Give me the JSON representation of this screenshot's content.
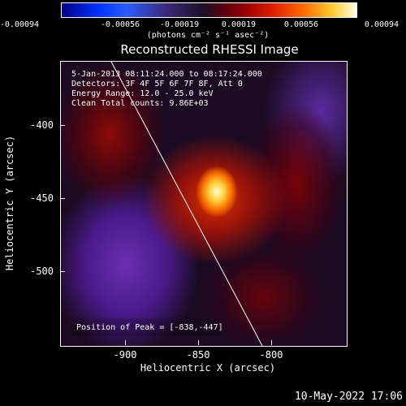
{
  "colorbar": {
    "ticks": [
      "-0.00094",
      "-0.00056",
      "-0.00019",
      "0.00019",
      "0.00056",
      "0.00094"
    ],
    "units": "(photons cm⁻² s⁻¹ asec⁻²)"
  },
  "title": "Reconstructed RHESSI Image",
  "annotations": {
    "line1": "5-Jan-2013 08:11:24.000 to 08:17:24.000",
    "line2": "Detectors: 3F 4F 5F 6F 7F 8F, Att 0",
    "line3": "Energy Range: 12.0 - 25.0 keV",
    "line4": "Clean    Total counts: 9.86E+03",
    "peak": "Position of Peak = [-838,-447]"
  },
  "axes": {
    "xlabel": "Heliocentric X (arcsec)",
    "ylabel": "Heliocentric Y (arcsec)",
    "xticks": [
      "-900",
      "-850",
      "-800"
    ],
    "yticks": [
      "-400",
      "-450",
      "-500"
    ]
  },
  "timestamp": "10-May-2022 17:06"
}
